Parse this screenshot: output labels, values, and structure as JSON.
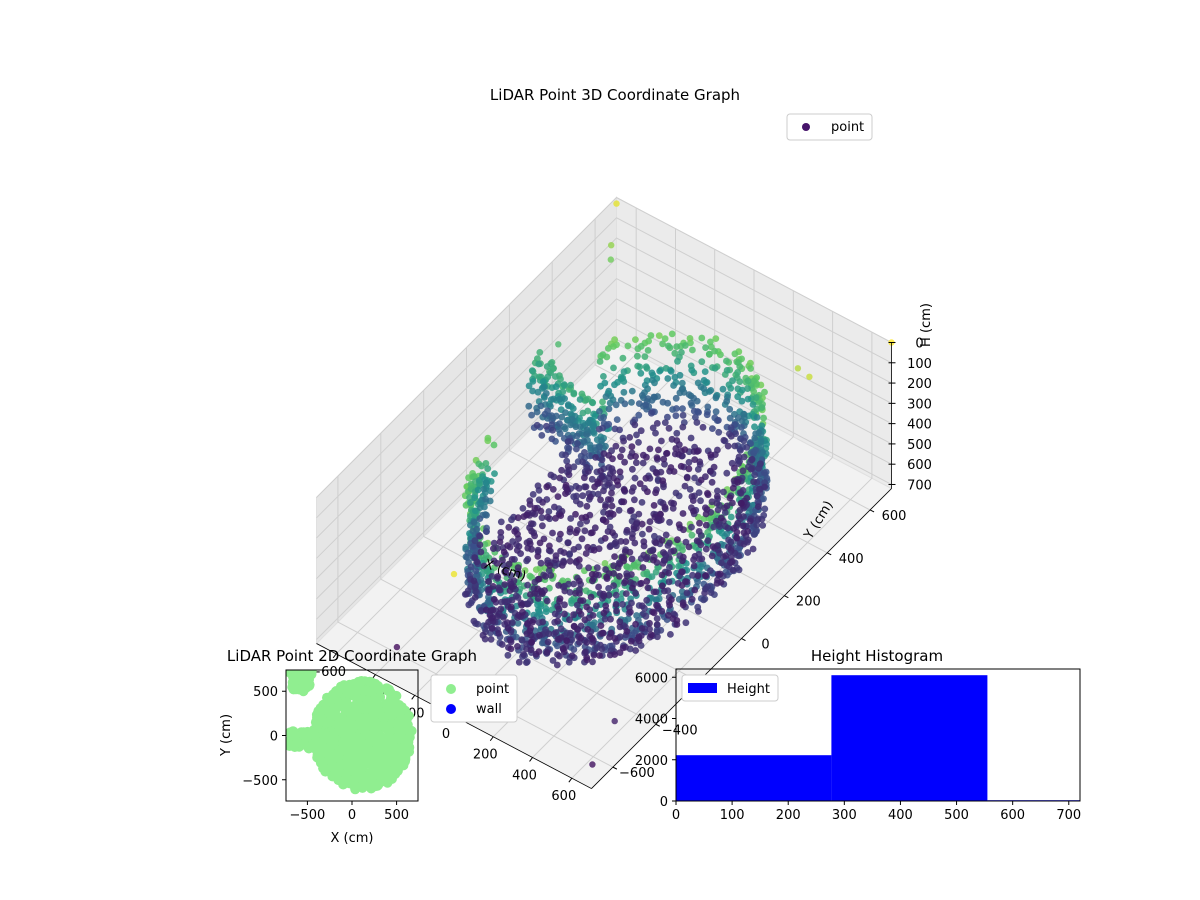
{
  "chart_data": [
    {
      "type": "scatter",
      "title": "LiDAR Point 3D Coordinate Graph",
      "xlabel": "X (cm)",
      "ylabel": "Y (cm)",
      "zlabel": "H (cm)",
      "xlim": [
        -700,
        700
      ],
      "ylim": [
        -700,
        700
      ],
      "zlim": [
        0,
        720
      ],
      "z_inverted": true,
      "x_ticks": [
        "−600",
        "−400",
        "−200",
        "0",
        "200",
        "400",
        "600"
      ],
      "x_tick_values": [
        -600,
        -400,
        -200,
        0,
        200,
        400,
        600
      ],
      "y_ticks": [
        "−600",
        "−400",
        "−200",
        "0",
        "200",
        "400",
        "600"
      ],
      "y_tick_values": [
        -600,
        -400,
        -200,
        0,
        200,
        400,
        600
      ],
      "z_ticks": [
        "0",
        "100",
        "200",
        "300",
        "400",
        "500",
        "600",
        "700"
      ],
      "z_tick_values": [
        0,
        100,
        200,
        300,
        400,
        500,
        600,
        700
      ],
      "legend": {
        "entries": [
          "point"
        ],
        "placement": "top-right"
      },
      "grid": true,
      "colormap": "viridis",
      "series": [
        {
          "name": "point",
          "description_points": "dense ring-shaped shell of points (radius ~500 cm) plus interior floor and scattered outliers",
          "points": [
            [
              -640,
              620,
              120
            ],
            [
              -620,
              600,
              160
            ],
            [
              -700,
              700,
              30
            ],
            [
              -560,
              300,
              230
            ],
            [
              0,
              -700,
              20
            ],
            [
              700,
              700,
              0
            ],
            [
              600,
              -500,
              650
            ],
            [
              650,
              -650,
              680
            ],
            [
              -400,
              -600,
              690
            ],
            [
              -100,
              -650,
              650
            ],
            [
              500,
              500,
              60
            ],
            [
              420,
              520,
              80
            ]
          ]
        }
      ]
    },
    {
      "type": "scatter",
      "title": "LiDAR Point 2D Coordinate Graph",
      "xlabel": "X (cm)",
      "ylabel": "Y (cm)",
      "xlim": [
        -740,
        740
      ],
      "ylim": [
        -740,
        740
      ],
      "x_ticks": [
        "−500",
        "0",
        "500"
      ],
      "x_tick_values": [
        -500,
        0,
        500
      ],
      "y_ticks": [
        "500",
        "0",
        "−500"
      ],
      "y_tick_values": [
        500,
        0,
        -500
      ],
      "legend": {
        "entries": [
          "point",
          "wall"
        ],
        "placement": "outside-right"
      },
      "series": [
        {
          "name": "point",
          "color": "#90ee90"
        },
        {
          "name": "wall",
          "color": "#0000ff"
        }
      ]
    },
    {
      "type": "bar",
      "title": "Height Histogram",
      "xlim": [
        0,
        720
      ],
      "ylim": [
        0,
        6400
      ],
      "x_ticks": [
        "0",
        "100",
        "200",
        "300",
        "400",
        "500",
        "600",
        "700"
      ],
      "x_tick_values": [
        0,
        100,
        200,
        300,
        400,
        500,
        600,
        700
      ],
      "y_ticks": [
        "0",
        "2000",
        "4000",
        "6000"
      ],
      "y_tick_values": [
        0,
        2000,
        4000,
        6000
      ],
      "legend": {
        "entries": [
          "Height"
        ],
        "placement": "top-left"
      },
      "series": [
        {
          "name": "Height",
          "color": "#0000ff",
          "bins": [
            [
              0,
              277
            ],
            [
              277,
              555
            ],
            [
              555,
              720
            ]
          ],
          "values": [
            2220,
            6100,
            40
          ]
        }
      ]
    }
  ]
}
